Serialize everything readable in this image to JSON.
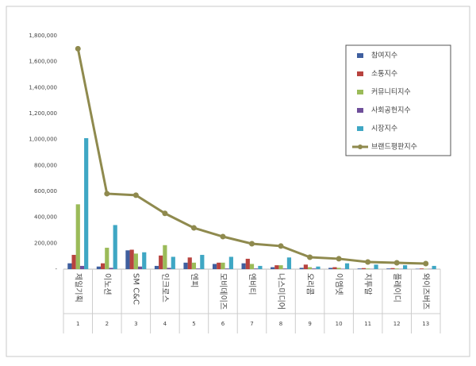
{
  "chart_data": {
    "type": "combo",
    "categories": [
      "제일기획",
      "이노션",
      "SM C&C",
      "인크로스",
      "엔피",
      "모비데이즈",
      "엔비티",
      "나스미디어",
      "오리콤",
      "이엠넷",
      "지투알",
      "플레이디",
      "와이즈버즈"
    ],
    "ranks": [
      1,
      2,
      3,
      4,
      5,
      6,
      7,
      8,
      9,
      10,
      11,
      12,
      13
    ],
    "series": [
      {
        "name": "참여지수",
        "type": "bar",
        "color": "#3f5f9f",
        "values": [
          45000,
          20000,
          145000,
          25000,
          50000,
          40000,
          45000,
          15000,
          10000,
          10000,
          5000,
          5000,
          3000
        ]
      },
      {
        "name": "소통지수",
        "type": "bar",
        "color": "#b8433f",
        "values": [
          110000,
          45000,
          150000,
          105000,
          90000,
          50000,
          80000,
          30000,
          35000,
          15000,
          8000,
          8000,
          5000
        ]
      },
      {
        "name": "커뮤니티지수",
        "type": "bar",
        "color": "#9bbb59",
        "values": [
          500000,
          165000,
          120000,
          185000,
          50000,
          50000,
          40000,
          30000,
          15000,
          10000,
          5000,
          5000,
          3000
        ]
      },
      {
        "name": "사회공헌지수",
        "type": "bar",
        "color": "#6f4f9a",
        "values": [
          25000,
          10000,
          20000,
          10000,
          5000,
          5000,
          5000,
          5000,
          5000,
          3000,
          2000,
          2000,
          2000
        ]
      },
      {
        "name": "시장지수",
        "type": "bar",
        "color": "#3fa7c4",
        "values": [
          1010000,
          340000,
          130000,
          95000,
          110000,
          95000,
          25000,
          90000,
          20000,
          45000,
          35000,
          30000,
          25000
        ]
      },
      {
        "name": "브랜드평판지수",
        "type": "line",
        "color": "#8f8a4e",
        "values": [
          1700000,
          582000,
          570000,
          430000,
          318000,
          251000,
          196000,
          178000,
          92000,
          80000,
          55000,
          49000,
          43000
        ]
      }
    ],
    "ylim": [
      0,
      1800000
    ],
    "yticks": [
      {
        "value": 0,
        "label": "-"
      },
      {
        "value": 200000,
        "label": "200,000"
      },
      {
        "value": 400000,
        "label": "400,000"
      },
      {
        "value": 600000,
        "label": "600,000"
      },
      {
        "value": 800000,
        "label": "800,000"
      },
      {
        "value": 1000000,
        "label": "1,000,000"
      },
      {
        "value": 1200000,
        "label": "1,200,000"
      },
      {
        "value": 1400000,
        "label": "1,400,000"
      },
      {
        "value": 1600000,
        "label": "1,600,000"
      },
      {
        "value": 1800000,
        "label": "1,800,000"
      }
    ],
    "grid": false,
    "legend": "upper right"
  }
}
